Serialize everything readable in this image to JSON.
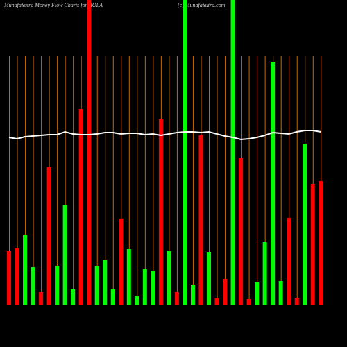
{
  "chart_data": {
    "type": "bar",
    "title": "MunafaSutra  Money Flow  Charts for IIOLA",
    "credit": "(c) MunafaSutra.com",
    "ylim": [
      0,
      440
    ],
    "values": [
      78,
      82,
      102,
      55,
      19,
      199,
      57,
      144,
      23,
      283,
      440,
      57,
      66,
      23,
      125,
      81,
      14,
      52,
      50,
      268,
      78,
      19,
      440,
      30,
      245,
      77,
      10,
      38,
      440,
      212,
      9,
      33,
      91,
      351,
      35,
      126,
      10,
      233,
      175,
      179
    ],
    "colors": [
      "#ff0000",
      "#ff0000",
      "#00ff00",
      "#00ff00",
      "#ff0000",
      "#ff0000",
      "#00ff00",
      "#00ff00",
      "#00ff00",
      "#ff0000",
      "#ff0000",
      "#00ff00",
      "#00ff00",
      "#00ff00",
      "#ff0000",
      "#00ff00",
      "#00ff00",
      "#00ff00",
      "#00ff00",
      "#ff0000",
      "#00ff00",
      "#ff0000",
      "#00ff00",
      "#00ff00",
      "#ff0000",
      "#00ff00",
      "#ff0000",
      "#ff0000",
      "#00ff00",
      "#ff0000",
      "#ff0000",
      "#00ff00",
      "#00ff00",
      "#00ff00",
      "#00ff00",
      "#ff0000",
      "#ff0000",
      "#00ff00",
      "#ff0000",
      "#ff0000"
    ],
    "line_values": [
      242,
      240,
      243,
      244,
      245,
      246,
      246,
      250,
      247,
      246,
      246,
      247,
      249,
      249,
      247,
      248,
      248,
      246,
      247,
      245,
      247,
      249,
      250,
      250,
      249,
      250,
      247,
      244,
      242,
      239,
      240,
      242,
      245,
      249,
      248,
      247,
      250,
      252,
      252,
      250
    ],
    "line_color": "#ffffff",
    "grid_color": "#cc6600"
  }
}
